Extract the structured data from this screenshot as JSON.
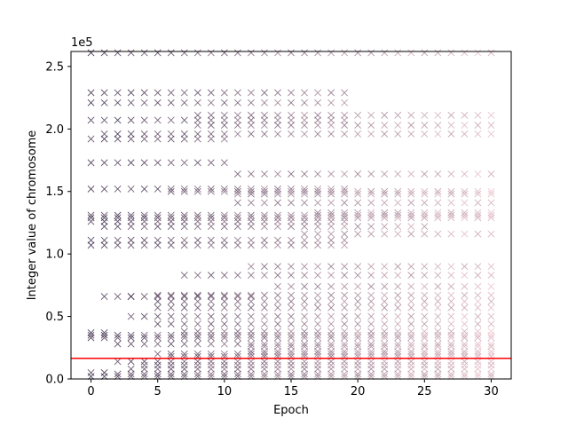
{
  "chart_data": {
    "type": "scatter",
    "title": "",
    "xlabel": "Epoch",
    "ylabel": "Integer value of chromosome",
    "y_offset_label": "1e5",
    "xlim": [
      -1.5,
      31.5
    ],
    "ylim": [
      0,
      2.62
    ],
    "x_ticks": [
      0,
      5,
      10,
      15,
      20,
      25,
      30
    ],
    "y_ticks": [
      0.0,
      0.5,
      1.0,
      1.5,
      2.0,
      2.5
    ],
    "y_tick_labels": [
      "0.0",
      "0.5",
      "1.0",
      "1.5",
      "2.0",
      "2.5"
    ],
    "marker": "x",
    "grid": false,
    "legend": "none",
    "reference_line": {
      "y": 0.165,
      "color": "#ff0000"
    },
    "color_gradient": {
      "from": "#2d1e3e",
      "to": "#f3c9d1",
      "note": "marker color varies by epoch/sample index"
    },
    "levels_by_epoch_range": [
      {
        "start": 0,
        "end": 30,
        "values": [
          2.61,
          1.31,
          1.29,
          0.35,
          0.33,
          0.02
        ]
      },
      {
        "start": 0,
        "end": 19,
        "values": [
          2.29,
          2.21,
          2.07,
          1.52,
          1.26,
          1.11,
          1.07
        ]
      },
      {
        "start": 0,
        "end": 10,
        "values": [
          1.92,
          1.73
        ]
      },
      {
        "start": 0,
        "end": 1,
        "values": [
          0.37,
          0.05
        ]
      },
      {
        "start": 1,
        "end": 30,
        "values": [
          1.96
        ]
      },
      {
        "start": 1,
        "end": 25,
        "values": [
          1.22
        ]
      },
      {
        "start": 1,
        "end": 3,
        "values": [
          0.66
        ]
      },
      {
        "start": 2,
        "end": 30,
        "values": [
          0.28,
          0.14,
          0.04
        ]
      },
      {
        "start": 3,
        "end": 30,
        "values": [
          0.5,
          0.08
        ]
      },
      {
        "start": 3,
        "end": 12,
        "values": [
          0.66
        ]
      },
      {
        "start": 4,
        "end": 30,
        "values": [
          0.11
        ]
      },
      {
        "start": 5,
        "end": 30,
        "values": [
          0.67,
          0.62,
          0.57,
          0.44,
          0.2
        ]
      },
      {
        "start": 6,
        "end": 30,
        "values": [
          1.5,
          0.18
        ]
      },
      {
        "start": 7,
        "end": 30,
        "values": [
          0.83,
          0.38
        ]
      },
      {
        "start": 8,
        "end": 30,
        "values": [
          2.11,
          2.03
        ]
      },
      {
        "start": 11,
        "end": 30,
        "values": [
          1.64,
          1.48,
          1.41
        ]
      },
      {
        "start": 12,
        "end": 30,
        "values": [
          0.9,
          0.26,
          0.22
        ]
      },
      {
        "start": 14,
        "end": 30,
        "values": [
          0.74
        ]
      },
      {
        "start": 16,
        "end": 30,
        "values": [
          1.16
        ]
      },
      {
        "start": 17,
        "end": 30,
        "values": [
          1.33
        ]
      }
    ]
  }
}
